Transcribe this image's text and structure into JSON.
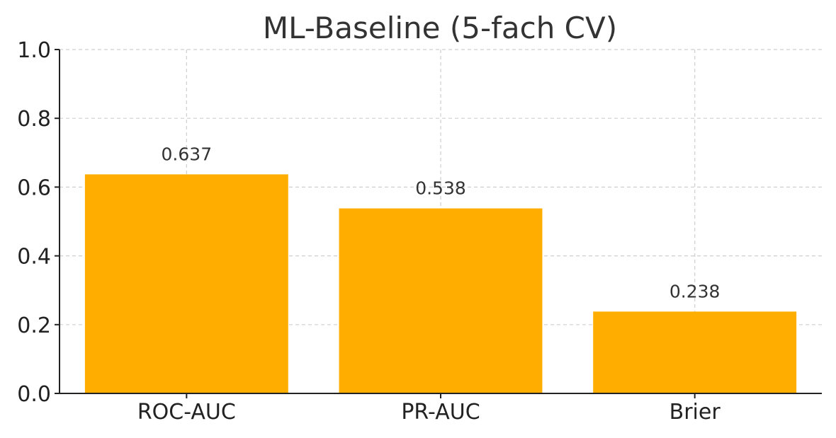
{
  "chart_data": {
    "type": "bar",
    "title": "ML-Baseline (5-fach CV)",
    "xlabel": "",
    "ylabel": "",
    "categories": [
      "ROC-AUC",
      "PR-AUC",
      "Brier"
    ],
    "values": [
      0.637,
      0.538,
      0.238
    ],
    "data_labels": [
      "0.637",
      "0.538",
      "0.238"
    ],
    "ylim": [
      0,
      1.0
    ],
    "yticks": [
      0.0,
      0.2,
      0.4,
      0.6,
      0.8,
      1.0
    ],
    "ytick_labels": [
      "0.0",
      "0.2",
      "0.4",
      "0.6",
      "0.8",
      "1.0"
    ],
    "grid": true,
    "bar_color": "#ffae00"
  }
}
